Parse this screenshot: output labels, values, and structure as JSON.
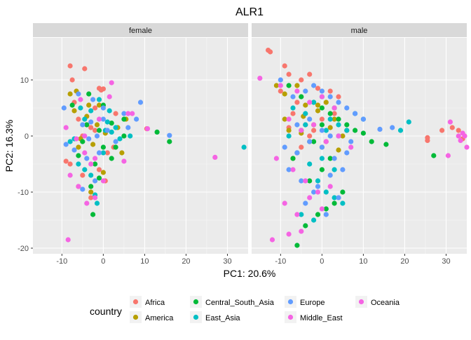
{
  "chart_data": {
    "type": "scatter",
    "title": "ALR1",
    "xlabel": "PC1: 20.6%",
    "ylabel": "PC2: 16.3%",
    "xlim": [
      -17,
      35
    ],
    "ylim": [
      -21,
      17.5
    ],
    "xticks": [
      -10,
      0,
      10,
      20,
      30
    ],
    "yticks": [
      -20,
      -10,
      0,
      10
    ],
    "grid": true,
    "legend": {
      "title": "country",
      "placement": "bottom",
      "entries": [
        {
          "name": "Africa",
          "color": "#F8766D"
        },
        {
          "name": "America",
          "color": "#B79F00"
        },
        {
          "name": "Central_South_Asia",
          "color": "#00BA38"
        },
        {
          "name": "East_Asia",
          "color": "#00BFC4"
        },
        {
          "name": "Europe",
          "color": "#619CFF"
        },
        {
          "name": "Middle_East",
          "color": "#F564E3"
        },
        {
          "name": "Oceania",
          "color": "#F564E3"
        }
      ]
    },
    "panels": [
      {
        "label": "female",
        "series": [
          {
            "name": "Africa",
            "x": [
              -8,
              -7.5,
              -4.5,
              -1,
              -0.5,
              0,
              -2,
              -6,
              -4,
              -3,
              -5,
              -9,
              -8,
              2.5,
              -1,
              10.5,
              -6,
              -3,
              1,
              -7,
              -5,
              -2,
              0.5,
              3
            ],
            "y": [
              12.5,
              10,
              12,
              8.5,
              8.2,
              8.4,
              5,
              3,
              2,
              1.5,
              0,
              -4.5,
              -5,
              -2,
              -6,
              1.3,
              -9,
              -11,
              -3,
              6,
              -7,
              1,
              -8,
              4
            ]
          },
          {
            "name": "America",
            "x": [
              -8,
              -6.5,
              -3.5,
              -1,
              0.5,
              -7,
              3.5,
              -5.5,
              5.5,
              -2.5,
              -4,
              -6,
              -3,
              4.5,
              0,
              -1.5
            ],
            "y": [
              7.5,
              8,
              5.5,
              5.5,
              0.5,
              4.5,
              1.5,
              -0.5,
              3,
              -1.5,
              3.5,
              -2,
              -10,
              -3,
              -6.5,
              2
            ]
          },
          {
            "name": "Central_South_Asia",
            "x": [
              -7.5,
              -3.5,
              0,
              -2.5,
              2,
              3,
              5,
              13,
              16,
              -1,
              0,
              -5,
              -2,
              5,
              -3,
              -4,
              -6,
              -1,
              2
            ],
            "y": [
              5.5,
              7.5,
              5.5,
              -14,
              2.3,
              -2,
              3,
              0.7,
              -1,
              -7.5,
              -2,
              -1,
              -5,
              0,
              -9,
              2,
              -3.5,
              1,
              -4
            ]
          },
          {
            "name": "East_Asia",
            "x": [
              -3,
              -1,
              1,
              -5.5,
              -4.5,
              6.5,
              2,
              34,
              -8,
              -6,
              -3,
              0,
              3,
              -2,
              4,
              -4.5,
              -7,
              1.5,
              -1.5,
              0.5
            ],
            "y": [
              4.5,
              6.5,
              2.5,
              5,
              3,
              0,
              0.7,
              -2,
              -1,
              -5,
              -7,
              -3,
              1.5,
              -10.5,
              -0.5,
              -6,
              -0.5,
              4.5,
              -12,
              1
            ]
          },
          {
            "name": "Europe",
            "x": [
              -9.5,
              -5,
              -6,
              -2.5,
              0,
              5,
              9,
              16,
              -9,
              -3.5,
              -1,
              1,
              -4,
              -2,
              6,
              8,
              -7,
              -5,
              -1.5,
              3,
              -3,
              0
            ],
            "y": [
              5,
              2,
              7.5,
              6.5,
              3,
              4,
              6,
              0.1,
              -1.5,
              -0.5,
              -3,
              1,
              -4,
              -8,
              1.5,
              3,
              -2.5,
              -9.5,
              0,
              -1,
              2.5,
              5
            ]
          },
          {
            "name": "Middle_East",
            "x": [
              -9,
              -8.5,
              -5.5,
              -4.5,
              -2,
              2,
              6,
              27,
              -8,
              -2,
              0,
              -6,
              -4.5,
              -1,
              1.5,
              -4,
              -3,
              7,
              -6.5
            ],
            "y": [
              1.5,
              -18.5,
              6.5,
              -3,
              -11,
              9.5,
              4,
              -3.8,
              -7,
              -4,
              -8,
              -9,
              0,
              3,
              7,
              -12,
              -5,
              4,
              -0.5
            ]
          },
          {
            "name": "Oceania",
            "x": [
              10.7,
              5
            ],
            "y": [
              1.3,
              -4.5
            ]
          }
        ]
      },
      {
        "label": "male",
        "series": [
          {
            "name": "Africa",
            "x": [
              -13,
              -12.5,
              -9,
              -8,
              -5,
              -3,
              -1,
              2,
              4,
              -6,
              -7,
              -4,
              -2,
              0,
              1,
              -3,
              25.5,
              25.5,
              29,
              31.5,
              33,
              34,
              -8,
              -6,
              -10,
              -5,
              3
            ],
            "y": [
              15.3,
              15,
              12.5,
              11,
              10,
              11,
              8.5,
              8,
              7,
              6,
              4,
              2,
              1,
              3,
              -1,
              0,
              -0.3,
              -0.8,
              1,
              1.5,
              1,
              -0.5,
              1.5,
              -3,
              8,
              -2,
              4
            ]
          },
          {
            "name": "America",
            "x": [
              -11,
              -9,
              -6,
              -4,
              -1,
              1,
              3,
              -8,
              -5,
              -2,
              0,
              2,
              5,
              -7,
              -3,
              4,
              -4.5,
              -1,
              6,
              -9
            ],
            "y": [
              9,
              7.5,
              9,
              5.5,
              4.5,
              6,
              3,
              1,
              0.5,
              2,
              -2,
              1.5,
              0,
              -4,
              -1,
              -2.5,
              3.5,
              5.5,
              1,
              3
            ]
          },
          {
            "name": "Central_South_Asia",
            "x": [
              -8,
              -5,
              -2,
              0,
              2,
              4,
              6,
              8,
              10,
              12,
              15.5,
              27,
              -6,
              -4,
              -1,
              1,
              3,
              5,
              -3,
              0,
              2,
              -7,
              -5,
              -2,
              0,
              3
            ],
            "y": [
              9,
              7,
              6,
              5,
              4,
              3,
              2,
              1,
              0.5,
              -1,
              -1.5,
              -3.5,
              -19.5,
              -16,
              -14,
              -13,
              -12,
              -10,
              -8,
              -6,
              -4,
              -4,
              1,
              -1,
              2,
              5
            ]
          },
          {
            "name": "East_Asia",
            "x": [
              -7,
              -4,
              -2,
              0,
              2,
              4,
              6,
              8,
              10,
              21,
              19,
              -6,
              -3,
              -1,
              1,
              3,
              5,
              -5,
              -2,
              0,
              3,
              -8,
              -4,
              1,
              4
            ],
            "y": [
              5,
              4,
              6,
              7,
              3,
              2,
              1,
              4,
              3,
              2.5,
              1,
              -3,
              -5,
              -8,
              -10,
              -11,
              -12,
              -14,
              -15,
              -4,
              -6,
              0,
              2,
              1,
              0
            ]
          },
          {
            "name": "Europe",
            "x": [
              -10,
              -7,
              -4,
              -2,
              0,
              2,
              4,
              6,
              8,
              10,
              17,
              14,
              -9,
              -6,
              -3,
              0,
              3,
              6,
              -8,
              -5,
              -1,
              2,
              5,
              -4,
              -2,
              1,
              4,
              -6,
              -3,
              0,
              2,
              7
            ],
            "y": [
              10,
              7,
              8,
              9,
              8,
              7,
              6,
              5,
              4,
              3,
              1.5,
              1.2,
              -2,
              -3,
              -1,
              -2,
              -4,
              -3,
              -6,
              -8,
              -9,
              -7,
              -6,
              -12,
              -10,
              -14,
              -11,
              2,
              3,
              1,
              0,
              -1
            ]
          },
          {
            "name": "Middle_East",
            "x": [
              -15,
              -10,
              -6,
              -3,
              0,
              3,
              -8,
              -5,
              -2,
              1,
              4,
              7,
              -11,
              -7,
              -4,
              -1,
              2,
              -9,
              -6,
              -3,
              0,
              33,
              31,
              -12,
              -8,
              -5
            ],
            "y": [
              10.3,
              9,
              8,
              6,
              7,
              5,
              3,
              1,
              2,
              -1,
              0,
              -2,
              -4,
              -6,
              -8,
              -10,
              -9,
              -12,
              -14,
              -11,
              -13,
              0,
              2.5,
              -18.5,
              -17.5,
              -17
            ]
          },
          {
            "name": "Oceania",
            "x": [
              34,
              33.5,
              35,
              34.5,
              30.5
            ],
            "y": [
              0.5,
              -0.8,
              -2,
              0,
              -3.5
            ]
          }
        ]
      }
    ]
  }
}
